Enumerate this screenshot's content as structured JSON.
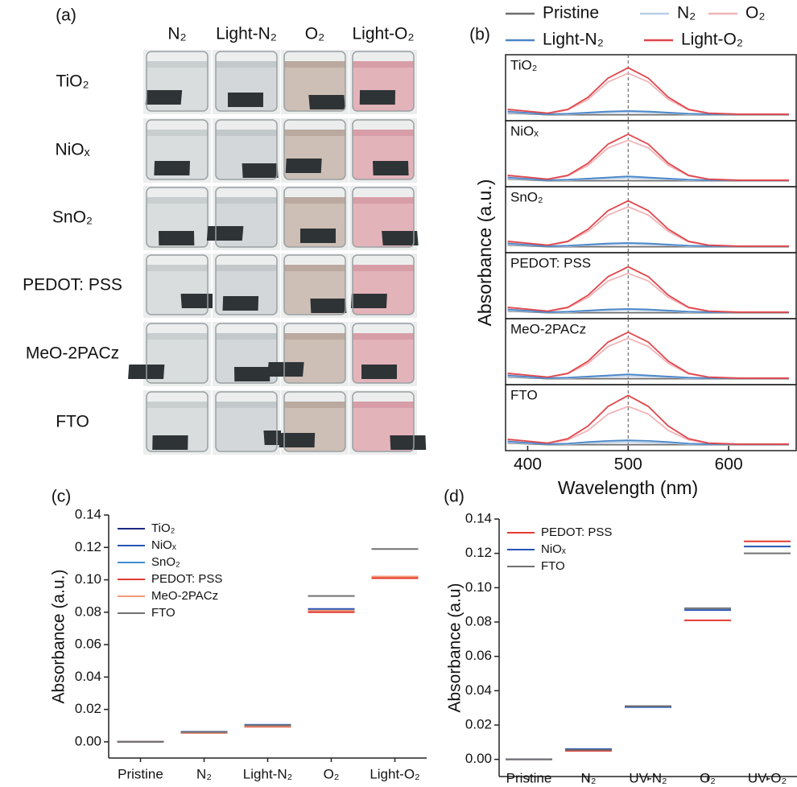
{
  "photo_grid": {
    "label": "(a)",
    "columns": [
      "N₂",
      "Light-N₂",
      "O₂",
      "Light-O₂"
    ],
    "rows": [
      "TiO₂",
      "NiOₓ",
      "SnO₂",
      "PEDOT: PSS",
      "MeO-2PACz",
      "FTO"
    ]
  },
  "chart_data": [
    {
      "type": "line",
      "panel_label": "(b)",
      "x_label": "Wavelength (nm)",
      "y_label": "Absorbance (a.u.)",
      "xlim": [
        378,
        668
      ],
      "xticks": [
        400,
        500,
        600
      ],
      "ylim": [
        0,
        1
      ],
      "vline": 500,
      "x": [
        380,
        420,
        440,
        460,
        480,
        500,
        520,
        540,
        560,
        580,
        610,
        660
      ],
      "series": [
        {
          "name": "Pristine",
          "color": "#6e6e6e"
        },
        {
          "name": "N₂",
          "color": "#b9cfe8"
        },
        {
          "name": "O₂",
          "color": "#f0b4b8"
        },
        {
          "name": "Light-N₂",
          "color": "#4a86c8"
        },
        {
          "name": "Light-O₂",
          "color": "#e0474c"
        }
      ],
      "panels": [
        {
          "label": "TiO₂",
          "values": [
            [
              0.05,
              0.02,
              0.02,
              0.02,
              0.02,
              0.02,
              0.02,
              0.02,
              0.02,
              0.02,
              0.02,
              0.02
            ],
            [
              0.06,
              0.03,
              0.03,
              0.05,
              0.06,
              0.07,
              0.06,
              0.05,
              0.03,
              0.03,
              0.03,
              0.03
            ],
            [
              0.11,
              0.04,
              0.11,
              0.3,
              0.62,
              0.78,
              0.62,
              0.3,
              0.11,
              0.04,
              0.03,
              0.03
            ],
            [
              0.08,
              0.03,
              0.04,
              0.06,
              0.08,
              0.09,
              0.08,
              0.06,
              0.04,
              0.03,
              0.03,
              0.03
            ],
            [
              0.12,
              0.05,
              0.12,
              0.34,
              0.69,
              0.88,
              0.69,
              0.34,
              0.12,
              0.05,
              0.03,
              0.03
            ]
          ]
        },
        {
          "label": "NiOₓ",
          "values": [
            [
              0.05,
              0.02,
              0.02,
              0.02,
              0.02,
              0.02,
              0.02,
              0.02,
              0.02,
              0.02,
              0.02,
              0.02
            ],
            [
              0.06,
              0.03,
              0.03,
              0.05,
              0.06,
              0.07,
              0.06,
              0.05,
              0.03,
              0.03,
              0.03,
              0.03
            ],
            [
              0.11,
              0.04,
              0.11,
              0.3,
              0.62,
              0.76,
              0.62,
              0.3,
              0.11,
              0.04,
              0.03,
              0.03
            ],
            [
              0.08,
              0.03,
              0.04,
              0.06,
              0.08,
              0.1,
              0.08,
              0.06,
              0.04,
              0.03,
              0.03,
              0.03
            ],
            [
              0.12,
              0.05,
              0.12,
              0.34,
              0.69,
              0.87,
              0.69,
              0.34,
              0.12,
              0.05,
              0.03,
              0.03
            ]
          ]
        },
        {
          "label": "SnO₂",
          "values": [
            [
              0.05,
              0.02,
              0.02,
              0.02,
              0.02,
              0.02,
              0.02,
              0.02,
              0.02,
              0.02,
              0.02,
              0.02
            ],
            [
              0.06,
              0.03,
              0.03,
              0.05,
              0.06,
              0.07,
              0.06,
              0.05,
              0.03,
              0.03,
              0.03,
              0.03
            ],
            [
              0.11,
              0.04,
              0.11,
              0.3,
              0.6,
              0.75,
              0.6,
              0.3,
              0.11,
              0.04,
              0.03,
              0.03
            ],
            [
              0.08,
              0.03,
              0.04,
              0.06,
              0.08,
              0.09,
              0.08,
              0.06,
              0.04,
              0.03,
              0.03,
              0.03
            ],
            [
              0.12,
              0.05,
              0.12,
              0.34,
              0.68,
              0.86,
              0.68,
              0.34,
              0.12,
              0.05,
              0.03,
              0.03
            ]
          ]
        },
        {
          "label": "PEDOT: PSS",
          "values": [
            [
              0.05,
              0.02,
              0.02,
              0.02,
              0.02,
              0.02,
              0.02,
              0.02,
              0.02,
              0.02,
              0.02,
              0.02
            ],
            [
              0.06,
              0.03,
              0.03,
              0.05,
              0.06,
              0.07,
              0.06,
              0.05,
              0.03,
              0.03,
              0.03,
              0.03
            ],
            [
              0.11,
              0.04,
              0.11,
              0.3,
              0.6,
              0.74,
              0.6,
              0.3,
              0.11,
              0.04,
              0.03,
              0.03
            ],
            [
              0.08,
              0.03,
              0.04,
              0.06,
              0.08,
              0.09,
              0.08,
              0.06,
              0.04,
              0.03,
              0.03,
              0.03
            ],
            [
              0.12,
              0.05,
              0.12,
              0.34,
              0.68,
              0.86,
              0.68,
              0.34,
              0.12,
              0.05,
              0.03,
              0.03
            ]
          ]
        },
        {
          "label": "MeO-2PACz",
          "values": [
            [
              0.05,
              0.02,
              0.02,
              0.02,
              0.02,
              0.02,
              0.02,
              0.02,
              0.02,
              0.02,
              0.02,
              0.02
            ],
            [
              0.06,
              0.03,
              0.03,
              0.05,
              0.06,
              0.07,
              0.06,
              0.05,
              0.03,
              0.03,
              0.03,
              0.03
            ],
            [
              0.11,
              0.04,
              0.11,
              0.3,
              0.61,
              0.76,
              0.61,
              0.3,
              0.11,
              0.04,
              0.03,
              0.03
            ],
            [
              0.08,
              0.03,
              0.04,
              0.06,
              0.08,
              0.1,
              0.08,
              0.06,
              0.04,
              0.03,
              0.03,
              0.03
            ],
            [
              0.12,
              0.05,
              0.12,
              0.34,
              0.69,
              0.87,
              0.69,
              0.34,
              0.12,
              0.05,
              0.03,
              0.03
            ]
          ]
        },
        {
          "label": "FTO",
          "values": [
            [
              0.05,
              0.02,
              0.02,
              0.02,
              0.02,
              0.02,
              0.02,
              0.02,
              0.02,
              0.02,
              0.02,
              0.02
            ],
            [
              0.06,
              0.03,
              0.03,
              0.05,
              0.06,
              0.07,
              0.06,
              0.05,
              0.03,
              0.03,
              0.03,
              0.03
            ],
            [
              0.11,
              0.04,
              0.11,
              0.28,
              0.58,
              0.72,
              0.58,
              0.28,
              0.11,
              0.04,
              0.03,
              0.03
            ],
            [
              0.08,
              0.03,
              0.04,
              0.07,
              0.09,
              0.1,
              0.09,
              0.07,
              0.04,
              0.03,
              0.03,
              0.03
            ],
            [
              0.12,
              0.05,
              0.13,
              0.36,
              0.72,
              0.92,
              0.72,
              0.36,
              0.13,
              0.05,
              0.03,
              0.03
            ]
          ]
        }
      ]
    },
    {
      "type": "level",
      "panel_label": "(c)",
      "y_label": "Absorbance (a.u.)",
      "categories": [
        "Pristine",
        "N₂",
        "Light-N₂",
        "O₂",
        "Light-O₂"
      ],
      "ylim": [
        -0.01,
        0.14
      ],
      "yticks": [
        {
          "value": 0,
          "label": "0.00"
        },
        0.02,
        0.04,
        0.06,
        0.08,
        {
          "value": 0.1,
          "label": "0.10"
        },
        0.12,
        0.14
      ],
      "series": [
        {
          "name": "TiO₂",
          "color": "#1c2a80",
          "values": [
            0,
            0.006,
            0.0095,
            0.081,
            0.101
          ]
        },
        {
          "name": "NiOₓ",
          "color": "#2455b5",
          "values": [
            0,
            0.0062,
            0.0105,
            0.082,
            0.102
          ]
        },
        {
          "name": "SnO₂",
          "color": "#3f8fd2",
          "values": [
            0,
            0.0058,
            0.0098,
            0.081,
            0.101
          ]
        },
        {
          "name": "PEDOT: PSS",
          "color": "#e43a30",
          "values": [
            0,
            0.0055,
            0.0093,
            0.08,
            0.101
          ]
        },
        {
          "name": "MeO-2PACz",
          "color": "#f39a78",
          "values": [
            0,
            0.0057,
            0.0096,
            0.081,
            0.102
          ]
        },
        {
          "name": "FTO",
          "color": "#707070",
          "values": [
            0,
            0.006,
            0.0102,
            0.09,
            0.119
          ]
        }
      ]
    },
    {
      "type": "level",
      "panel_label": "(d)",
      "y_label": "Absorbance (a.u)",
      "categories": [
        "Pristine",
        "N₂",
        "UV-N₂",
        "O₂",
        "UV-O₂"
      ],
      "ylim": [
        -0.01,
        0.14
      ],
      "yticks": [
        {
          "value": 0,
          "label": "0.00"
        },
        0.02,
        0.04,
        0.06,
        0.08,
        {
          "value": 0.1,
          "label": "0.10"
        },
        0.12,
        0.14
      ],
      "series": [
        {
          "name": "PEDOT: PSS",
          "color": "#e43a30",
          "values": [
            0,
            0.005,
            0.031,
            0.081,
            0.127
          ]
        },
        {
          "name": "NiOₓ",
          "color": "#2455b5",
          "values": [
            0,
            0.006,
            0.0305,
            0.087,
            0.124
          ]
        },
        {
          "name": "FTO",
          "color": "#707070",
          "values": [
            0,
            0.0055,
            0.031,
            0.088,
            0.12
          ]
        }
      ]
    }
  ]
}
